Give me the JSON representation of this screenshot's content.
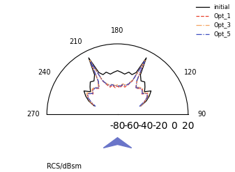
{
  "chart_data": {
    "type": "polar_line",
    "r_label": "RCS/dBsm",
    "x": [
      110,
      115,
      120,
      125,
      130,
      135,
      140,
      145,
      150,
      153,
      156,
      160,
      165,
      170,
      175,
      180,
      185,
      190,
      195,
      200,
      204,
      207,
      210,
      215,
      220,
      225,
      230,
      235,
      240,
      245,
      250
    ],
    "xlim": [
      90,
      270
    ],
    "xticks": [
      90,
      120,
      180,
      210,
      240,
      270
    ],
    "ylim": [
      -80,
      20
    ],
    "yticks": [
      20,
      0,
      -20,
      -40,
      -60,
      -80
    ],
    "grid": false,
    "legend": "upper right",
    "series": [
      {
        "name": "initial",
        "color": "#000000",
        "line_style": "solid",
        "values": [
          -45,
          -35,
          -28,
          -22,
          -30,
          -25,
          -20,
          -22,
          -15,
          10,
          -15,
          -20,
          -18,
          -22,
          -20,
          -18,
          -20,
          -22,
          -18,
          -20,
          -15,
          10,
          -15,
          -22,
          -20,
          -25,
          -30,
          -22,
          -28,
          -35,
          -45
        ]
      },
      {
        "name": "Opt_1",
        "color": "#e8412c",
        "line_style": "dashed",
        "values": [
          -45,
          -38,
          -32,
          -28,
          -35,
          -30,
          -32,
          -35,
          -25,
          5,
          -28,
          -35,
          -40,
          -38,
          -42,
          -40,
          -42,
          -38,
          -40,
          -35,
          -28,
          5,
          -25,
          -35,
          -32,
          -30,
          -35,
          -28,
          -32,
          -38,
          -45
        ]
      },
      {
        "name": "Opt_3",
        "color": "#f4a460",
        "line_style": "dashdot",
        "values": [
          -46,
          -37,
          -30,
          -27,
          -33,
          -29,
          -30,
          -33,
          -24,
          6,
          -26,
          -33,
          -37,
          -36,
          -39,
          -38,
          -39,
          -36,
          -37,
          -33,
          -26,
          6,
          -24,
          -33,
          -30,
          -29,
          -33,
          -27,
          -30,
          -37,
          -46
        ]
      },
      {
        "name": "Opt_5",
        "color": "#3b4cc0",
        "line_style": "dashdot",
        "values": [
          -47,
          -39,
          -31,
          -29,
          -34,
          -31,
          -31,
          -34,
          -26,
          4,
          -27,
          -34,
          -38,
          -37,
          -40,
          -39,
          -40,
          -37,
          -38,
          -34,
          -27,
          4,
          -26,
          -34,
          -31,
          -31,
          -34,
          -29,
          -31,
          -39,
          -47
        ]
      }
    ]
  }
}
